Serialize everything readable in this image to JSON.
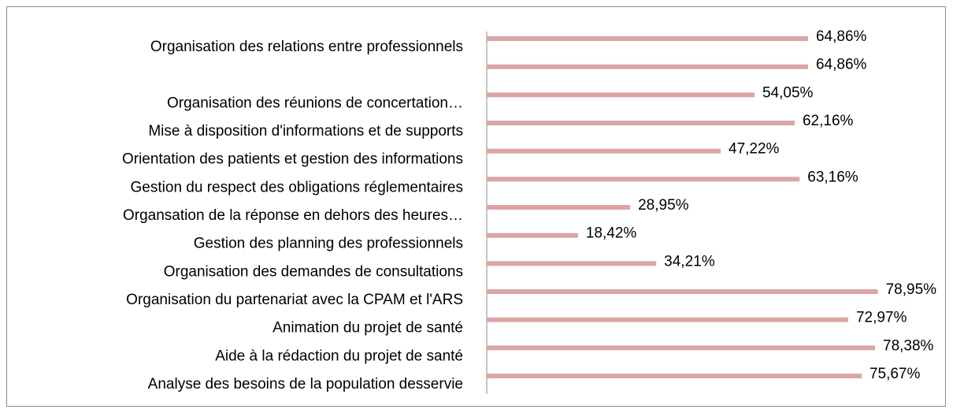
{
  "chart_data": {
    "type": "bar",
    "orientation": "horizontal",
    "categories": [
      "Organisation des relations entre professionnels",
      null,
      "Organisation des réunions de concertation…",
      "Mise à disposition d'informations et de supports",
      "Orientation des patients et gestion des informations",
      "Gestion du respect des obligations réglementaires",
      "Organsation de la réponse en dehors des heures…",
      "Gestion des planning des professionnels",
      "Organisation des demandes de consultations",
      "Organisation du partenariat avec la CPAM et l'ARS",
      "Animation du projet de santé",
      "Aide à la rédaction du projet de santé",
      "Analyse des besoins de la population desservie"
    ],
    "values": [
      64.86,
      64.86,
      54.05,
      62.16,
      47.22,
      63.16,
      28.95,
      18.42,
      34.21,
      78.95,
      72.97,
      78.38,
      75.67
    ],
    "value_labels": [
      "64,86%",
      "64,86%",
      "54,05%",
      "62,16%",
      "47,22%",
      "63,16%",
      "28,95%",
      "18,42%",
      "34,21%",
      "78,95%",
      "72,97%",
      "78,38%",
      "75,67%"
    ],
    "color": "#dba5a5"
  }
}
